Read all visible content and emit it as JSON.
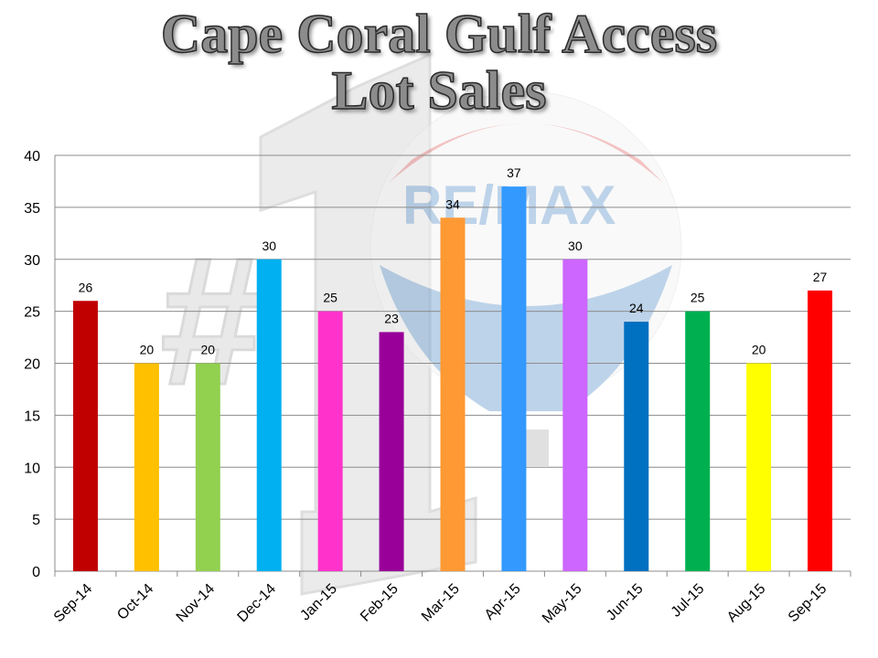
{
  "chart_data": {
    "type": "bar",
    "title": [
      "Cape Coral Gulf Access",
      "Lot Sales"
    ],
    "categories": [
      "Sep-14",
      "Oct-14",
      "Nov-14",
      "Dec-14",
      "Jan-15",
      "Feb-15",
      "Mar-15",
      "Apr-15",
      "May-15",
      "Jun-15",
      "Jul-15",
      "Aug-15",
      "Sep-15"
    ],
    "values": [
      26,
      20,
      20,
      30,
      25,
      23,
      34,
      37,
      30,
      24,
      25,
      20,
      27
    ],
    "colors": [
      "#c00000",
      "#ffc000",
      "#92d050",
      "#00b0f0",
      "#ff33cc",
      "#990099",
      "#ff9933",
      "#3399ff",
      "#cc66ff",
      "#0070c0",
      "#00b050",
      "#ffff00",
      "#ff0000"
    ],
    "ylim": [
      0,
      40
    ],
    "yticks": [
      0,
      5,
      10,
      15,
      20,
      25,
      30,
      35,
      40
    ],
    "grid": true,
    "data_labels": true,
    "xlabel": "",
    "ylabel": ""
  },
  "watermark": {
    "logo_text": "RE/MAX",
    "badge_text": "#1",
    "registered_mark": "®"
  }
}
